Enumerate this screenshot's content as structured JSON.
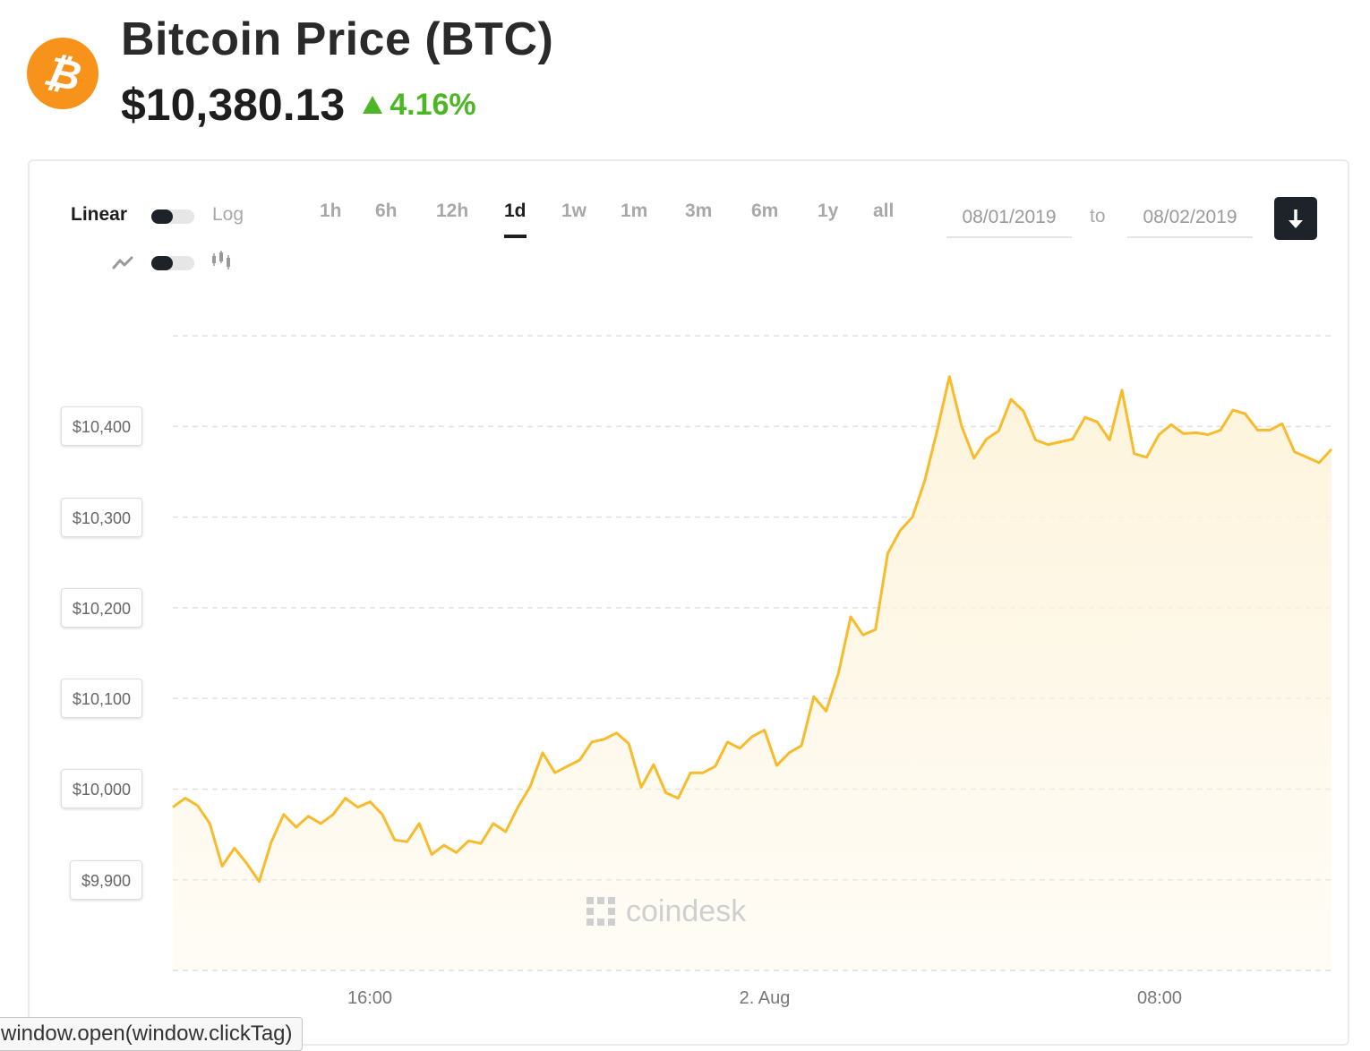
{
  "header": {
    "logo_symbol": "₿",
    "title": "Bitcoin Price (BTC)",
    "price": "$10,380.13",
    "change": "4.16%",
    "change_direction": "up",
    "colors": {
      "brand": "#F7931A",
      "positive": "#4CB725"
    }
  },
  "controls": {
    "scale_linear_label": "Linear",
    "scale_log_label": "Log",
    "scale_selected": "Linear",
    "chart_style_line_icon": "line-chart-icon",
    "chart_style_candle_icon": "candlestick-icon",
    "chart_style_selected": "line",
    "ranges": [
      "1h",
      "6h",
      "12h",
      "1d",
      "1w",
      "1m",
      "3m",
      "6m",
      "1y",
      "all"
    ],
    "active_range": "1d",
    "date_from": "08/01/2019",
    "to_label": "to",
    "date_to": "08/02/2019",
    "download_icon": "download-arrow-icon"
  },
  "chart_data": {
    "type": "area",
    "series": [
      {
        "values": [
          9980,
          9990,
          9982,
          9962,
          9915,
          9935,
          9918,
          9898,
          9942,
          9972,
          9958,
          9970,
          9962,
          9972,
          9990,
          9980,
          9986,
          9972,
          9944,
          9942,
          9962,
          9928,
          9938,
          9930,
          9943,
          9940,
          9962,
          9953,
          9980,
          10003,
          10040,
          10018,
          10025,
          10032,
          10052,
          10055,
          10062,
          10050,
          10002,
          10027,
          9996,
          9990,
          10018,
          10018,
          10025,
          10052,
          10045,
          10058,
          10065,
          10026,
          10040,
          10048,
          10102,
          10086,
          10128,
          10190,
          10170,
          10176,
          10260,
          10285,
          10300,
          10340,
          10395,
          10455,
          10400,
          10365,
          10386,
          10395,
          10430,
          10417,
          10385,
          10380,
          10383,
          10386,
          10410,
          10405,
          10385,
          10440,
          10370,
          10366,
          10391,
          10402,
          10392,
          10393,
          10391,
          10396,
          10418,
          10414,
          10396,
          10396,
          10403,
          10372,
          10366,
          10360,
          10375
        ]
      }
    ],
    "x_tick_labels": [
      "16:00",
      "2. Aug",
      "08:00"
    ],
    "y_ticks": [
      9900,
      10000,
      10100,
      10200,
      10300,
      10400
    ],
    "y_tick_labels": [
      "$9,900",
      "$10,000",
      "$10,100",
      "$10,200",
      "$10,300",
      "$10,400"
    ],
    "ylim": [
      9800,
      10505
    ],
    "grid": true,
    "scale": "linear",
    "line_color": "#F7BB2C",
    "fill_color": "#FEF4DC"
  },
  "watermark": "coindesk",
  "tooltip": "window.open(window.clickTag)"
}
